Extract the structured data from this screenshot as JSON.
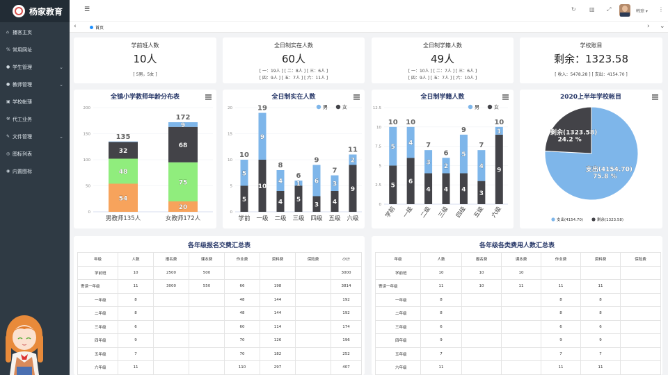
{
  "app": {
    "title": "杨家教育"
  },
  "menu": [
    {
      "icon": "home-icon",
      "glyph": "⌂",
      "label": "播客主页",
      "arrow": false
    },
    {
      "icon": "link-icon",
      "glyph": "%",
      "label": "常用网址",
      "arrow": false
    },
    {
      "icon": "user-icon",
      "glyph": "●",
      "label": "学生管理",
      "arrow": true
    },
    {
      "icon": "teacher-icon",
      "glyph": "●",
      "label": "教师管理",
      "arrow": true
    },
    {
      "icon": "ledger-icon",
      "glyph": "▣",
      "label": "学校帐薄",
      "arrow": false
    },
    {
      "icon": "service-icon",
      "glyph": "⚒",
      "label": "代工业务",
      "arrow": false
    },
    {
      "icon": "file-icon",
      "glyph": "✎",
      "label": "文件管理",
      "arrow": true
    },
    {
      "icon": "chart-list-icon",
      "glyph": "◎",
      "label": "图标列表",
      "arrow": false
    },
    {
      "icon": "builtin-chart-icon",
      "glyph": "◉",
      "label": "内置图标",
      "arrow": false
    }
  ],
  "topbar": {
    "user": "韩琼 ▾"
  },
  "tabs": [
    {
      "label": "首页"
    }
  ],
  "stats": [
    {
      "title": "学前班人数",
      "value": "10人",
      "lines": [
        "[ 5男，5女 ]"
      ]
    },
    {
      "title": "全日制实在人数",
      "value": "60人",
      "lines": [
        "[ 一：19人 ] [ 二：8人 ] [ 三：6人 ]",
        "[ 四：9人 ] [ 五：7人 ] [ 六：11人 ]"
      ]
    },
    {
      "title": "全日制学籍人数",
      "value": "49人",
      "lines": [
        "[ 一：10人 ] [ 二：7人 ] [ 三：6人 ]",
        "[ 四：9人 ] [ 五：7人 ] [ 六：10人 ]"
      ]
    },
    {
      "title": "学校账目",
      "value": "剩余：1323.58",
      "lines": [
        "[ 收入：5478.28 ] [ 支出：4154.70 ]"
      ]
    }
  ],
  "colors": {
    "male": "#7eb6ea",
    "female": "#434348",
    "green": "#90ed7d",
    "orange": "#f7a35c",
    "title": "#2a3a6a"
  },
  "chart_data": [
    {
      "type": "bar",
      "title": "全镇小学教师年龄分布表",
      "categories": [
        "男教师135人",
        "女教师172人"
      ],
      "ylim": [
        0,
        200
      ],
      "yticks": [
        0,
        50,
        100,
        150,
        200
      ],
      "stacked": true,
      "series": [
        {
          "color": "#f7a35c",
          "values": [
            54,
            20
          ]
        },
        {
          "color": "#90ed7d",
          "values": [
            48,
            75
          ]
        },
        {
          "color": "#434348",
          "values": [
            32,
            68
          ]
        },
        {
          "color": "#7eb6ea",
          "values": [
            1,
            9
          ]
        }
      ],
      "totals": [
        135,
        172
      ],
      "totals_max": [
        135,
        172
      ]
    },
    {
      "type": "bar",
      "title": "全日制实在人数",
      "categories": [
        "学前",
        "一级",
        "二级",
        "三级",
        "四级",
        "五级",
        "六级"
      ],
      "ylim": [
        0,
        20
      ],
      "yticks": [
        0,
        5,
        10,
        15,
        20
      ],
      "stacked": true,
      "legend": [
        "男",
        "女"
      ],
      "series": [
        {
          "name": "女",
          "color": "#434348",
          "values": [
            5,
            10,
            4,
            5,
            3,
            4,
            9
          ]
        },
        {
          "name": "男",
          "color": "#7eb6ea",
          "values": [
            5,
            9,
            4,
            1,
            6,
            3,
            2
          ]
        }
      ],
      "totals": [
        10,
        19,
        8,
        6,
        9,
        7,
        11
      ]
    },
    {
      "type": "bar",
      "title": "全日制学籍人数",
      "categories": [
        "学前",
        "一级",
        "二级",
        "三级",
        "四级",
        "五级",
        "六级"
      ],
      "ylim": [
        0,
        12.5
      ],
      "yticks": [
        0,
        2.5,
        5,
        7.5,
        10,
        12.5
      ],
      "stacked": true,
      "legend": [
        "男",
        "女"
      ],
      "series": [
        {
          "name": "女",
          "color": "#434348",
          "values": [
            5,
            6,
            4,
            4,
            4,
            3,
            9
          ]
        },
        {
          "name": "男",
          "color": "#7eb6ea",
          "values": [
            5,
            4,
            3,
            2,
            5,
            4,
            1
          ]
        }
      ],
      "totals": [
        10,
        10,
        7,
        6,
        9,
        7,
        10
      ]
    },
    {
      "type": "pie",
      "title": "2020上半年学校帐目",
      "slices": [
        {
          "name": "支出(4154.70)",
          "value": 4154.7,
          "pct": "75.8 %",
          "color": "#7eb6ea"
        },
        {
          "name": "剩余(1323.58)",
          "value": 1323.58,
          "pct": "24.2 %",
          "color": "#434348"
        }
      ]
    }
  ],
  "table1": {
    "title": "各年级报名交费汇总表",
    "headers": [
      "年级",
      "人数",
      "报名费",
      "课本费",
      "作业费",
      "资料费",
      "保险费",
      "小计"
    ],
    "rows": [
      [
        "学前班",
        "10",
        "2500",
        "500",
        "",
        "",
        "",
        "3000"
      ],
      [
        "寄读一年级",
        "11",
        "3000",
        "550",
        "66",
        "198",
        "",
        "3814"
      ],
      [
        "一年级",
        "8",
        "",
        "",
        "48",
        "144",
        "",
        "192"
      ],
      [
        "二年级",
        "8",
        "",
        "",
        "48",
        "144",
        "",
        "192"
      ],
      [
        "三年级",
        "6",
        "",
        "",
        "60",
        "114",
        "",
        "174"
      ],
      [
        "四年级",
        "9",
        "",
        "",
        "70",
        "126",
        "",
        "196"
      ],
      [
        "五年级",
        "7",
        "",
        "",
        "70",
        "182",
        "",
        "252"
      ],
      [
        "六年级",
        "11",
        "",
        "",
        "110",
        "297",
        "",
        "407"
      ]
    ]
  },
  "table2": {
    "title": "各年级各类费用人数汇总表",
    "headers": [
      "年级",
      "人数",
      "报名费",
      "课本费",
      "作业费",
      "资料费",
      "保险费"
    ],
    "rows": [
      [
        "学前班",
        "10",
        "10",
        "10",
        "",
        "",
        ""
      ],
      [
        "寄读一年级",
        "11",
        "10",
        "11",
        "11",
        "11",
        ""
      ],
      [
        "一年级",
        "8",
        "",
        "",
        "8",
        "8",
        ""
      ],
      [
        "二年级",
        "8",
        "",
        "",
        "8",
        "8",
        ""
      ],
      [
        "三年级",
        "6",
        "",
        "",
        "6",
        "6",
        ""
      ],
      [
        "四年级",
        "9",
        "",
        "",
        "9",
        "9",
        ""
      ],
      [
        "五年级",
        "7",
        "",
        "",
        "7",
        "7",
        ""
      ],
      [
        "六年级",
        "11",
        "",
        "",
        "11",
        "11",
        ""
      ]
    ]
  }
}
